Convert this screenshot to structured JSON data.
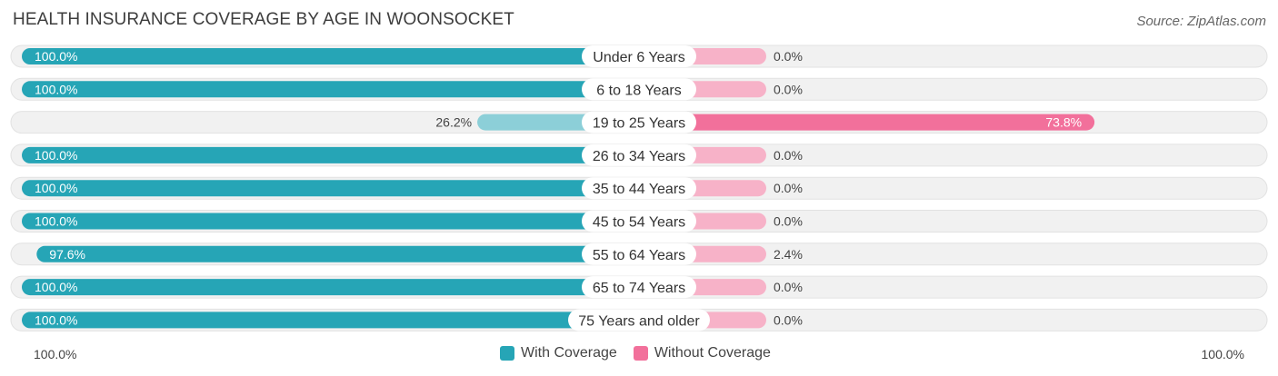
{
  "title": "HEALTH INSURANCE COVERAGE BY AGE IN WOONSOCKET",
  "source": "Source: ZipAtlas.com",
  "colors": {
    "with_coverage": "#26a5b6",
    "with_coverage_light": "#8ccfd8",
    "without_coverage": "#f2709b",
    "without_coverage_light": "#f7b2c8",
    "row_bg": "#f1f1f1"
  },
  "legend": {
    "with_label": "With Coverage",
    "without_label": "Without Coverage"
  },
  "axis": {
    "left_label": "100.0%",
    "right_label": "100.0%"
  },
  "chart_data": {
    "type": "bar",
    "orientation": "horizontal-diverging",
    "categories": [
      "Under 6 Years",
      "6 to 18 Years",
      "19 to 25 Years",
      "26 to 34 Years",
      "35 to 44 Years",
      "45 to 54 Years",
      "55 to 64 Years",
      "65 to 74 Years",
      "75 Years and older"
    ],
    "series": [
      {
        "name": "With Coverage",
        "values": [
          100.0,
          100.0,
          26.2,
          100.0,
          100.0,
          100.0,
          97.6,
          100.0,
          100.0
        ],
        "labels": [
          "100.0%",
          "100.0%",
          "26.2%",
          "100.0%",
          "100.0%",
          "100.0%",
          "97.6%",
          "100.0%",
          "100.0%"
        ]
      },
      {
        "name": "Without Coverage",
        "values": [
          0.0,
          0.0,
          73.8,
          0.0,
          0.0,
          0.0,
          2.4,
          0.0,
          0.0
        ],
        "labels": [
          "0.0%",
          "0.0%",
          "73.8%",
          "0.0%",
          "0.0%",
          "0.0%",
          "2.4%",
          "0.0%",
          "0.0%"
        ]
      }
    ],
    "xlim": [
      0,
      100
    ],
    "legend_position": "bottom-center"
  }
}
